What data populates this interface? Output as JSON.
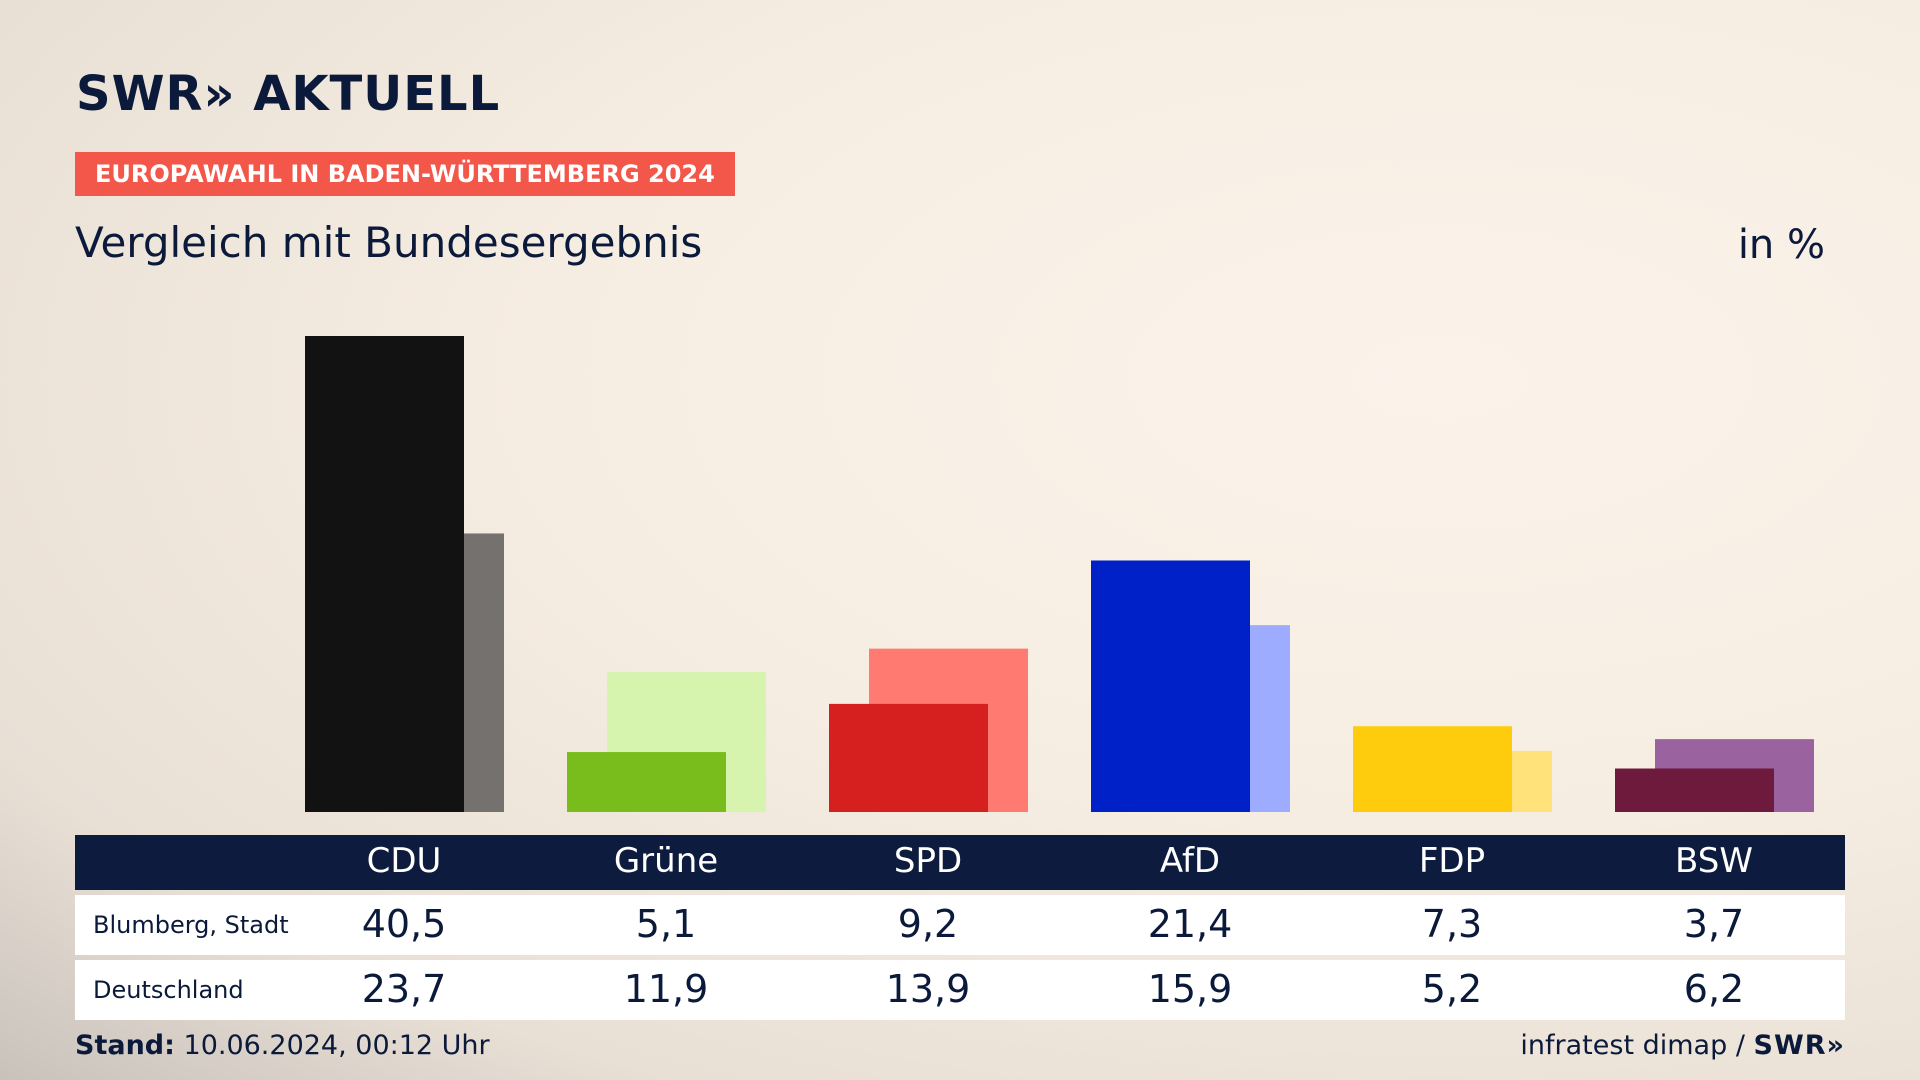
{
  "header": {
    "logo_text": "SWR» AKTUELL",
    "tag": "EUROPAWAHL IN BADEN-WÜRTTEMBERG 2024",
    "title": "Vergleich mit Bundesergebnis",
    "unit": "in %"
  },
  "footer": {
    "stand_label": "Stand:",
    "stand_value": "10.06.2024, 00:12 Uhr",
    "source": "infratest dimap /",
    "source_logo": "SWR»"
  },
  "chart_data": {
    "type": "bar",
    "categories": [
      "CDU",
      "Grüne",
      "SPD",
      "AfD",
      "FDP",
      "BSW"
    ],
    "series": [
      {
        "name": "Blumberg, Stadt",
        "values": [
          40.5,
          5.1,
          9.2,
          21.4,
          7.3,
          3.7
        ]
      },
      {
        "name": "Deutschland",
        "values": [
          23.7,
          11.9,
          13.9,
          15.9,
          5.2,
          6.2
        ]
      }
    ],
    "ylim": [
      0,
      40.5
    ],
    "colors": {
      "primary": [
        "#121212",
        "#79bd1c",
        "#d62020",
        "#0021c8",
        "#ffcc0d",
        "#6e1a3c"
      ],
      "secondary": [
        "#74716e",
        "#d6f4ad",
        "#ff7a70",
        "#9eacff",
        "#ffe27a",
        "#9a629e"
      ]
    },
    "table": {
      "header": [
        "CDU",
        "Grüne",
        "SPD",
        "AfD",
        "FDP",
        "BSW"
      ],
      "rows": [
        {
          "label": "Blumberg, Stadt",
          "values": [
            "40,5",
            "5,1",
            "9,2",
            "21,4",
            "7,3",
            "3,7"
          ]
        },
        {
          "label": "Deutschland",
          "values": [
            "23,7",
            "11,9",
            "13,9",
            "15,9",
            "5,2",
            "6,2"
          ]
        }
      ]
    }
  }
}
